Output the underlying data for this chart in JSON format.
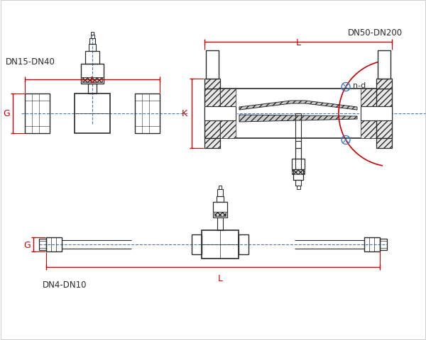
{
  "bg_color": "#ffffff",
  "line_color": "#2a2a2a",
  "red_color": "#cc0000",
  "blue_color": "#4477bb",
  "title1": "DN4-DN10",
  "title2": "DN15-DN40",
  "title3": "DN50-DN200",
  "label_G": "G",
  "label_L": "L",
  "label_K": "K",
  "label_nd": "n-d"
}
